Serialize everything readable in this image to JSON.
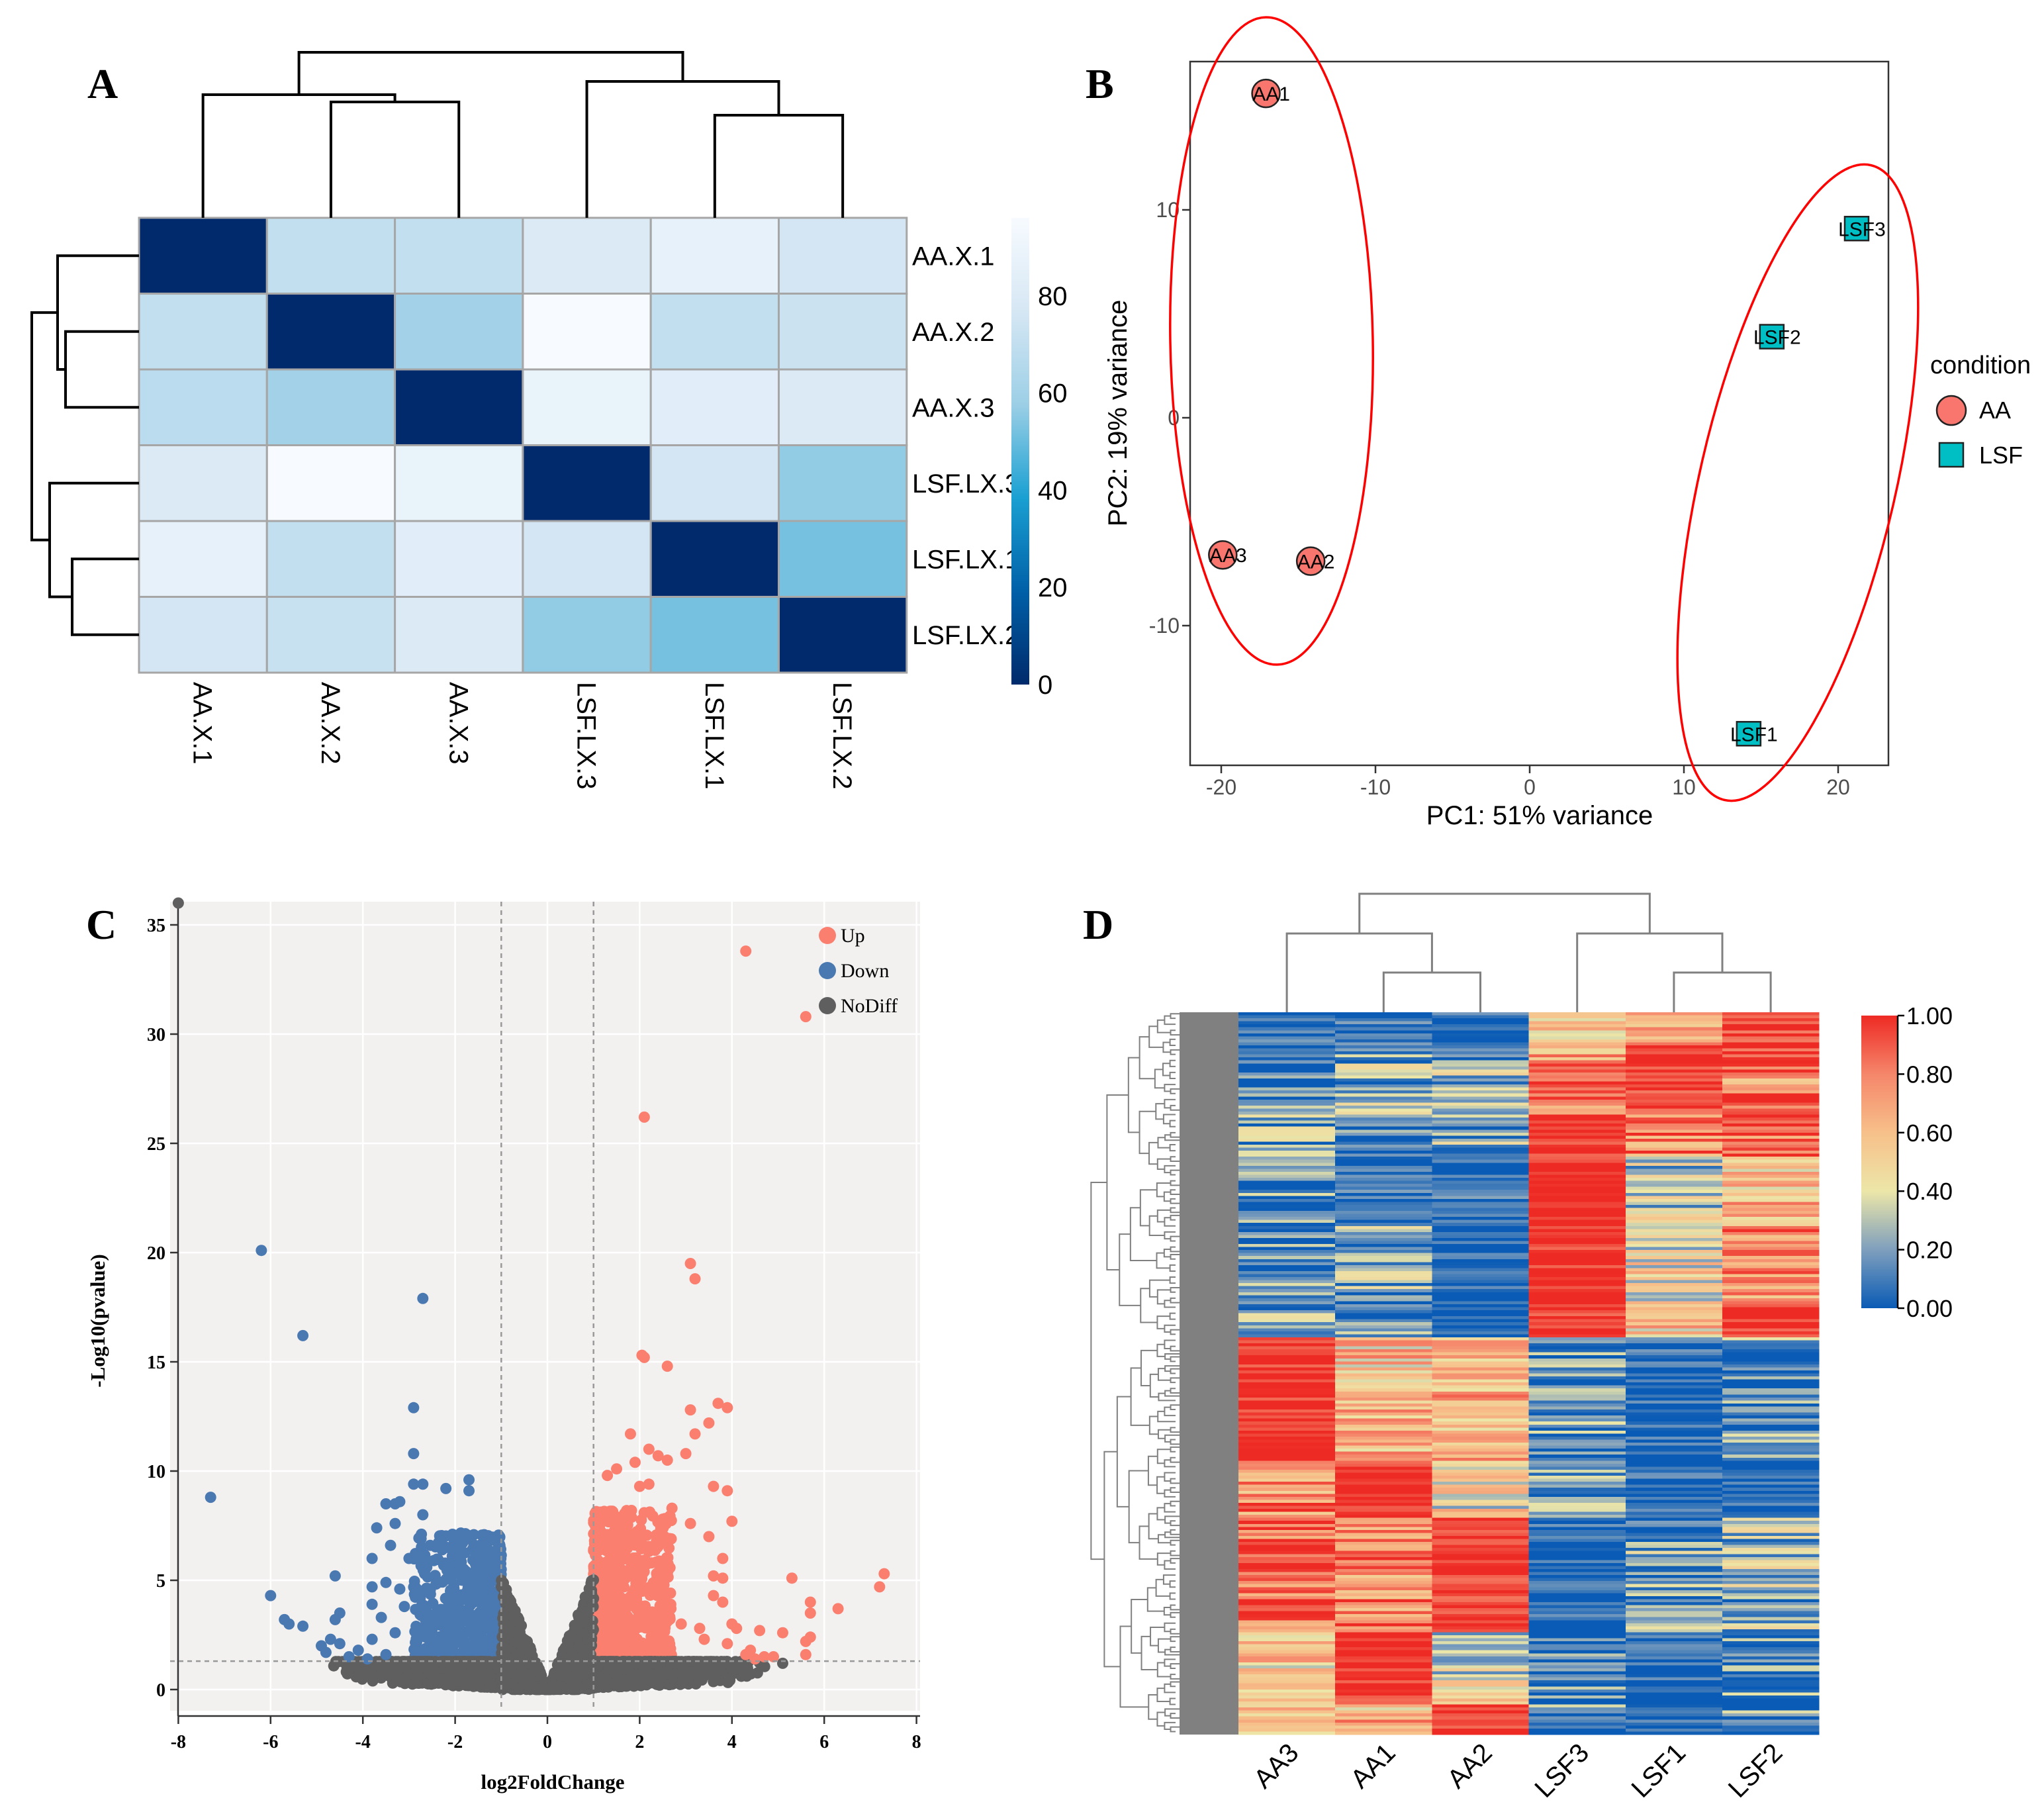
{
  "panels": {
    "A": "A",
    "B": "B",
    "C": "C",
    "D": "D"
  },
  "chart_data": [
    {
      "panel": "A",
      "type": "heatmap",
      "title": "",
      "rows": [
        "AA.X.1",
        "AA.X.2",
        "AA.X.3",
        "LSF.LX.3",
        "LSF.LX.1",
        "LSF.LX.2"
      ],
      "columns": [
        "AA.X.1",
        "AA.X.2",
        "AA.X.3",
        "LSF.LX.3",
        "LSF.LX.1",
        "LSF.LX.2"
      ],
      "values": [
        [
          0,
          70,
          70,
          80,
          86,
          76
        ],
        [
          70,
          0,
          60,
          96,
          70,
          73
        ],
        [
          68,
          60,
          0,
          88,
          83,
          80
        ],
        [
          80,
          96,
          88,
          0,
          76,
          56
        ],
        [
          86,
          70,
          83,
          76,
          0,
          52
        ],
        [
          76,
          72,
          80,
          56,
          52,
          0
        ]
      ],
      "colorbar": {
        "ticks": [
          "0",
          "20",
          "40",
          "60",
          "80"
        ],
        "tick_values": [
          0,
          20,
          40,
          60,
          80
        ],
        "range": [
          0,
          96
        ],
        "low_color": "#002a6b",
        "high_color": "#f7fbff"
      },
      "dendrogram": "hierarchical clustering on rows and columns"
    },
    {
      "panel": "B",
      "type": "scatter",
      "xlabel": "PC1: 51% variance",
      "ylabel": "PC2: 19% variance",
      "xlim": [
        -22,
        23.3
      ],
      "ylim": [
        -16.6,
        17.3
      ],
      "xticks": [
        "-20",
        "-10",
        "0",
        "10",
        "20"
      ],
      "xtick_values": [
        -20,
        -10,
        0,
        10,
        20
      ],
      "yticks": [
        "10",
        "0",
        "-10"
      ],
      "ytick_values": [
        10,
        0,
        -10
      ],
      "legend": {
        "title": "condition",
        "placement": "right",
        "entries": [
          {
            "label": "AA",
            "shape": "circle",
            "color": "#f8766d"
          },
          {
            "label": "LSF",
            "shape": "square",
            "color": "#00bfc4"
          }
        ]
      },
      "points": [
        {
          "label": "AA1",
          "group": "AA",
          "x": -17.1,
          "y": 15.6
        },
        {
          "label": "AA2",
          "group": "AA",
          "x": -14.2,
          "y": -6.9
        },
        {
          "label": "AA3",
          "group": "AA",
          "x": -19.9,
          "y": -6.6
        },
        {
          "label": "LSF1",
          "group": "LSF",
          "x": 14.2,
          "y": -15.2
        },
        {
          "label": "LSF2",
          "group": "LSF",
          "x": 15.7,
          "y": 3.9
        },
        {
          "label": "LSF3",
          "group": "LSF",
          "x": 21.2,
          "y": 9.1
        }
      ],
      "annotation": "red ellipses around each condition group",
      "ellipse_color": "#ff0000"
    },
    {
      "panel": "C",
      "type": "scatter",
      "xlabel": "log2FoldChange",
      "ylabel": "-Log10(pvalue)",
      "xlim": [
        -8,
        8
      ],
      "ylim": [
        -1,
        36
      ],
      "xticks": [
        "-8",
        "-6",
        "-4",
        "-2",
        "0",
        "2",
        "4",
        "6",
        "8"
      ],
      "xtick_values": [
        -8,
        -6,
        -4,
        -2,
        0,
        2,
        4,
        6,
        8
      ],
      "yticks": [
        "0",
        "5",
        "10",
        "15",
        "20",
        "25",
        "30",
        "35"
      ],
      "ytick_values": [
        0,
        5,
        10,
        15,
        20,
        25,
        30,
        35
      ],
      "thresholds": {
        "log2fc": [
          -1,
          1
        ],
        "neglog10p": 1.3
      },
      "grid": true,
      "legend": {
        "placement": "top-right",
        "entries": [
          {
            "label": "Up",
            "color": "#fa7f6f"
          },
          {
            "label": "Down",
            "color": "#4a78b0"
          },
          {
            "label": "NoDiff",
            "color": "#5f5f5f"
          }
        ]
      },
      "series": [
        {
          "name": "Up",
          "points": [
            [
              4.3,
              33.8
            ],
            [
              5.6,
              30.8
            ],
            [
              2.1,
              26.2
            ],
            [
              3.1,
              19.5
            ],
            [
              3.2,
              18.8
            ],
            [
              2.05,
              15.3
            ],
            [
              2.1,
              15.2
            ],
            [
              2.6,
              14.8
            ],
            [
              3.7,
              13.1
            ],
            [
              3.9,
              12.9
            ],
            [
              3.1,
              12.8
            ],
            [
              3.5,
              12.2
            ],
            [
              3.2,
              11.7
            ],
            [
              1.8,
              11.7
            ],
            [
              2.2,
              11.0
            ],
            [
              2.4,
              10.7
            ],
            [
              2.6,
              10.5
            ],
            [
              3.0,
              10.8
            ],
            [
              3.6,
              9.3
            ],
            [
              3.9,
              9.1
            ],
            [
              4.0,
              7.7
            ],
            [
              3.1,
              7.6
            ],
            [
              3.5,
              7.0
            ],
            [
              3.8,
              6.0
            ],
            [
              3.6,
              5.2
            ],
            [
              3.8,
              5.1
            ],
            [
              5.3,
              5.1
            ],
            [
              7.3,
              5.3
            ],
            [
              7.2,
              4.7
            ],
            [
              5.7,
              4.0
            ],
            [
              5.7,
              3.5
            ],
            [
              6.3,
              3.7
            ],
            [
              4.6,
              2.7
            ],
            [
              5.1,
              2.6
            ],
            [
              5.6,
              2.2
            ],
            [
              5.7,
              2.4
            ],
            [
              4.4,
              1.8
            ],
            [
              5.6,
              1.6
            ],
            [
              4.9,
              1.5
            ],
            [
              4.7,
              1.5
            ],
            [
              2.7,
              8.3
            ],
            [
              2.5,
              7.8
            ],
            [
              1.3,
              9.8
            ],
            [
              1.5,
              10.1
            ],
            [
              1.9,
              10.4
            ],
            [
              2.2,
              9.4
            ],
            [
              2.0,
              9.3
            ],
            [
              3.8,
              4.0
            ],
            [
              3.6,
              4.3
            ],
            [
              4.1,
              2.8
            ],
            [
              4.0,
              3.0
            ],
            [
              3.3,
              2.8
            ],
            [
              3.4,
              2.3
            ],
            [
              2.9,
              3.0
            ],
            [
              3.9,
              2.1
            ],
            [
              4.3,
              1.6
            ],
            [
              4.5,
              1.4
            ]
          ]
        },
        {
          "name": "Down",
          "points": [
            [
              -6.2,
              20.1
            ],
            [
              -2.7,
              17.9
            ],
            [
              -5.3,
              16.2
            ],
            [
              -2.9,
              12.9
            ],
            [
              -2.9,
              10.8
            ],
            [
              -7.3,
              8.8
            ],
            [
              -2.9,
              9.4
            ],
            [
              -2.7,
              9.4
            ],
            [
              -2.2,
              9.2
            ],
            [
              -1.7,
              9.6
            ],
            [
              -1.7,
              9.1
            ],
            [
              -3.5,
              8.5
            ],
            [
              -3.3,
              8.5
            ],
            [
              -3.2,
              8.6
            ],
            [
              -2.7,
              8.0
            ],
            [
              -3.7,
              7.4
            ],
            [
              -3.3,
              7.6
            ],
            [
              -3.4,
              6.6
            ],
            [
              -3.0,
              6.0
            ],
            [
              -3.8,
              6.0
            ],
            [
              -4.6,
              5.2
            ],
            [
              -6.0,
              4.3
            ],
            [
              -5.7,
              3.2
            ],
            [
              -5.6,
              3.0
            ],
            [
              -5.3,
              2.9
            ],
            [
              -4.5,
              3.5
            ],
            [
              -4.6,
              3.2
            ],
            [
              -4.9,
              2.0
            ],
            [
              -4.7,
              2.3
            ],
            [
              -3.8,
              4.7
            ],
            [
              -3.5,
              4.9
            ],
            [
              -3.8,
              3.9
            ],
            [
              -3.6,
              3.3
            ],
            [
              -4.1,
              1.8
            ],
            [
              -4.3,
              1.5
            ],
            [
              -3.8,
              2.3
            ],
            [
              -4.8,
              1.7
            ],
            [
              -4.5,
              2.1
            ],
            [
              -3.2,
              4.6
            ],
            [
              -3.1,
              3.8
            ],
            [
              -3.3,
              2.6
            ],
            [
              -3.9,
              1.4
            ],
            [
              -3.5,
              1.6
            ]
          ]
        },
        {
          "name": "NoDiff",
          "points": [
            [
              -8.0,
              36.0
            ],
            [
              5.1,
              1.2
            ]
          ]
        }
      ],
      "dense_clusters": [
        {
          "group": "Up",
          "xrange": [
            1.0,
            2.7
          ],
          "yrange": [
            1.3,
            8.2
          ],
          "count": 700
        },
        {
          "group": "Down",
          "xrange": [
            -2.9,
            -1.0
          ],
          "yrange": [
            1.3,
            7.2
          ],
          "count": 650
        },
        {
          "group": "NoDiff",
          "shape": "band",
          "xrange": [
            -4.7,
            4.8
          ],
          "yrange": [
            0,
            1.3
          ],
          "count": 2600
        },
        {
          "group": "NoDiff",
          "shape": "v",
          "xrange": [
            -1.0,
            1.0
          ],
          "yrange": [
            0,
            6.0
          ],
          "count": 900
        }
      ]
    },
    {
      "panel": "D",
      "type": "heatmap",
      "columns": [
        "AA3",
        "AA1",
        "AA2",
        "LSF3",
        "LSF1",
        "LSF2"
      ],
      "row_count": 240,
      "noise": 0.28,
      "row_blocks": [
        {
          "from": 0.0,
          "to": 0.06,
          "values": [
            0.08,
            0.08,
            0.05,
            0.45,
            0.75,
            0.95
          ]
        },
        {
          "from": 0.06,
          "to": 0.14,
          "values": [
            0.12,
            0.2,
            0.25,
            0.8,
            0.95,
            0.8
          ]
        },
        {
          "from": 0.14,
          "to": 0.2,
          "values": [
            0.2,
            0.1,
            0.2,
            0.98,
            0.78,
            0.85
          ]
        },
        {
          "from": 0.2,
          "to": 0.29,
          "values": [
            0.12,
            0.08,
            0.08,
            1.0,
            0.3,
            0.6
          ]
        },
        {
          "from": 0.29,
          "to": 0.4,
          "values": [
            0.15,
            0.2,
            0.02,
            1.0,
            0.45,
            0.72
          ]
        },
        {
          "from": 0.4,
          "to": 0.45,
          "values": [
            0.2,
            0.15,
            0.02,
            0.97,
            0.55,
            0.98
          ]
        },
        {
          "from": 0.45,
          "to": 0.62,
          "values": [
            1.0,
            0.58,
            0.6,
            0.12,
            0.05,
            0.12
          ]
        },
        {
          "from": 0.62,
          "to": 0.7,
          "values": [
            0.75,
            1.0,
            0.45,
            0.15,
            0.04,
            0.05
          ]
        },
        {
          "from": 0.7,
          "to": 0.86,
          "values": [
            0.9,
            0.8,
            0.95,
            0.05,
            0.2,
            0.25
          ]
        },
        {
          "from": 0.86,
          "to": 0.96,
          "values": [
            0.5,
            1.0,
            0.4,
            0.1,
            0.06,
            0.12
          ]
        },
        {
          "from": 0.96,
          "to": 1.0,
          "values": [
            0.55,
            0.6,
            1.0,
            0.1,
            0.08,
            0.12
          ]
        }
      ],
      "colorbar": {
        "ticks": [
          "1.00",
          "0.80",
          "0.60",
          "0.40",
          "0.20",
          "0.00"
        ],
        "tick_values": [
          1,
          0.8,
          0.6,
          0.4,
          0.2,
          0
        ],
        "range": [
          0,
          1
        ],
        "colors": [
          "#0a5bb5",
          "#7f9fbd",
          "#ece6a8",
          "#f7c08a",
          "#f5866a",
          "#ee2a24"
        ]
      }
    }
  ]
}
